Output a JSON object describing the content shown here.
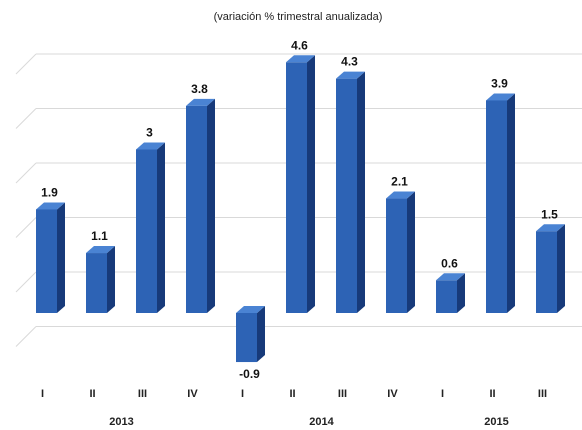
{
  "chart_data": {
    "type": "bar",
    "title": "",
    "subtitle": "(variación % trimestral anualizada)",
    "categories": [
      "I",
      "II",
      "III",
      "IV",
      "I",
      "II",
      "III",
      "IV",
      "I",
      "II",
      "III"
    ],
    "years": [
      {
        "label": "2013",
        "quarters": 4
      },
      {
        "label": "2014",
        "quarters": 4
      },
      {
        "label": "2015",
        "quarters": 3
      }
    ],
    "values": [
      1.9,
      1.1,
      3,
      3.8,
      -0.9,
      4.6,
      4.3,
      2.1,
      0.6,
      3.9,
      1.5
    ],
    "value_labels": [
      "1.9",
      "1.1",
      "3",
      "3.8",
      "-0.9",
      "4.6",
      "4.3",
      "2.1",
      "0.6",
      "3.9",
      "1.5"
    ],
    "ylim": [
      -1,
      5
    ],
    "grid": true,
    "legend": "none",
    "xlabel": "",
    "ylabel": "",
    "colors": {
      "bar_front": "#2d63b5",
      "bar_side": "#173a7a",
      "bar_top": "#4a83d3",
      "grid": "#d9d9d9"
    }
  }
}
